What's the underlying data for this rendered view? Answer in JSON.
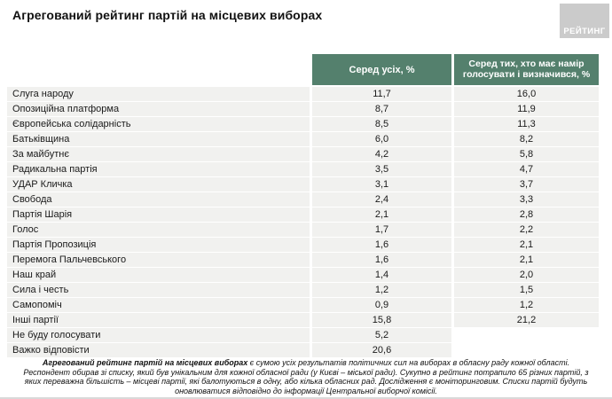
{
  "title": "Агрегований рейтинг партій на місцевих виборах",
  "logo": {
    "text": "РЕЙТИНГ"
  },
  "colors": {
    "header_green": "#54806d",
    "row_gray": "#f1f1ef",
    "logo_gray": "#cbcbcb",
    "bottom_line": "#d9d9d9"
  },
  "table": {
    "col1_header": "Серед усіх, %",
    "col2_header": "Серед тих, хто має намір голосувати і визначився, %",
    "rows": [
      {
        "party": "Слуга народу",
        "all": "11,7",
        "decided": "16,0"
      },
      {
        "party": "Опозиційна платформа",
        "all": "8,7",
        "decided": "11,9"
      },
      {
        "party": "Європейська солідарність",
        "all": "8,5",
        "decided": "11,3"
      },
      {
        "party": "Батьківщина",
        "all": "6,0",
        "decided": "8,2"
      },
      {
        "party": "За майбутнє",
        "all": "4,2",
        "decided": "5,8"
      },
      {
        "party": "Радикальна партія",
        "all": "3,5",
        "decided": "4,7"
      },
      {
        "party": "УДАР Кличка",
        "all": "3,1",
        "decided": "3,7"
      },
      {
        "party": "Свобода",
        "all": "2,4",
        "decided": "3,3"
      },
      {
        "party": "Партія Шарія",
        "all": "2,1",
        "decided": "2,8"
      },
      {
        "party": "Голос",
        "all": "1,7",
        "decided": "2,2"
      },
      {
        "party": "Партія Пропозиція",
        "all": "1,6",
        "decided": "2,1"
      },
      {
        "party": "Перемога Пальчевського",
        "all": "1,6",
        "decided": "2,1"
      },
      {
        "party": "Наш край",
        "all": "1,4",
        "decided": "2,0"
      },
      {
        "party": "Сила і честь",
        "all": "1,2",
        "decided": "1,5"
      },
      {
        "party": "Самопоміч",
        "all": "0,9",
        "decided": "1,2"
      },
      {
        "party": "Інші партії",
        "all": "15,8",
        "decided": "21,2"
      },
      {
        "party": "Не буду голосувати",
        "all": "5,2",
        "decided": null
      },
      {
        "party": "Важко відповісти",
        "all": "20,6",
        "decided": null
      }
    ]
  },
  "footer": {
    "line1_bold": "Агрегований рейтинг партій на місцевих виборах",
    "line1_rest": " є сумою усіх результатів політичних сил на виборах в обласну раду кожної області.",
    "lines": [
      "Респондент обирав зі списку, який був унікальним для кожної обласної ради (у Києві – міської ради). Сукупно в рейтинг потрапило 65 різних партій, з",
      "яких переважна більшість – місцеві партії, які балотуються в одну, або кілька обласних рад. Дослідження є моніторинговим. Списки партій будуть",
      "оновлюватися відповідно до інформації Центральної виборчої комісії."
    ]
  },
  "chart_data": {
    "type": "table",
    "title": "Агрегований рейтинг партій на місцевих виборах",
    "columns": [
      "Партія",
      "Серед усіх, %",
      "Серед тих, хто має намір голосувати і визначився, %"
    ],
    "rows": [
      [
        "Слуга народу",
        11.7,
        16.0
      ],
      [
        "Опозиційна платформа",
        8.7,
        11.9
      ],
      [
        "Європейська солідарність",
        8.5,
        11.3
      ],
      [
        "Батьківщина",
        6.0,
        8.2
      ],
      [
        "За майбутнє",
        4.2,
        5.8
      ],
      [
        "Радикальна партія",
        3.5,
        4.7
      ],
      [
        "УДАР Кличка",
        3.1,
        3.7
      ],
      [
        "Свобода",
        2.4,
        3.3
      ],
      [
        "Партія Шарія",
        2.1,
        2.8
      ],
      [
        "Голос",
        1.7,
        2.2
      ],
      [
        "Партія Пропозиція",
        1.6,
        2.1
      ],
      [
        "Перемога Пальчевського",
        1.6,
        2.1
      ],
      [
        "Наш край",
        1.4,
        2.0
      ],
      [
        "Сила і честь",
        1.2,
        1.5
      ],
      [
        "Самопоміч",
        0.9,
        1.2
      ],
      [
        "Інші партії",
        15.8,
        21.2
      ],
      [
        "Не буду голосувати",
        5.2,
        null
      ],
      [
        "Важко відповісти",
        20.6,
        null
      ]
    ]
  }
}
